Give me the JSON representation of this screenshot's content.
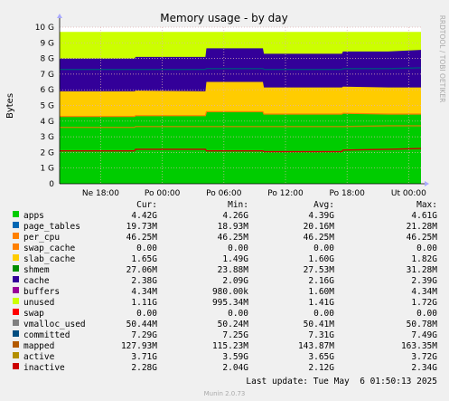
{
  "chart_data": {
    "type": "area",
    "title": "Memory usage - by day",
    "ylabel": "Bytes",
    "side_label": "RRDTOOL / TOBI OETIKER",
    "ylim": [
      0,
      10
    ],
    "y_unit": "G",
    "y_ticks": [
      "0",
      "1 G",
      "2 G",
      "3 G",
      "4 G",
      "5 G",
      "6 G",
      "7 G",
      "8 G",
      "9 G",
      "10 G"
    ],
    "x_ticks": [
      "Ne 18:00",
      "Po 00:00",
      "Po 06:00",
      "Po 12:00",
      "Po 18:00",
      "Ut 00:00"
    ],
    "grid": true,
    "stacked_layers_G": {
      "x_hours_from_Ne_18_00": [
        -4.0,
        3.3,
        3.4,
        10.2,
        10.3,
        15.8,
        15.9,
        23.5,
        23.6,
        28.0,
        31.2
      ],
      "apps_top": [
        4.3,
        4.3,
        4.35,
        4.35,
        4.6,
        4.6,
        4.45,
        4.45,
        4.5,
        4.45,
        4.45
      ],
      "slab_cache_top": [
        5.9,
        5.9,
        5.95,
        5.9,
        6.5,
        6.5,
        6.15,
        6.15,
        6.2,
        6.15,
        6.15
      ],
      "cache_top": [
        8.0,
        8.0,
        8.1,
        8.1,
        8.65,
        8.65,
        8.3,
        8.3,
        8.45,
        8.45,
        8.55
      ],
      "unused_top": [
        9.7,
        9.7,
        9.7,
        9.7,
        9.7,
        9.7,
        9.7,
        9.7,
        9.7,
        9.7,
        9.7
      ],
      "inactive_line": [
        2.1,
        2.1,
        2.2,
        2.2,
        2.1,
        2.1,
        2.05,
        2.05,
        2.15,
        2.2,
        2.25
      ],
      "active_line": [
        3.6,
        3.6,
        3.65,
        3.65,
        3.65,
        3.65,
        3.65,
        3.65,
        3.65,
        3.7,
        3.7
      ],
      "committed_line": [
        7.3,
        7.3,
        7.3,
        7.3,
        7.35,
        7.35,
        7.3,
        7.3,
        7.35,
        7.35,
        7.4
      ]
    },
    "legend_header": {
      "cur": "Cur:",
      "min": "Min:",
      "avg": "Avg:",
      "max": "Max:"
    },
    "series": [
      {
        "name": "apps",
        "color": "#00cc00",
        "cur": "4.42G",
        "min": "4.26G",
        "avg": "4.39G",
        "max": "4.61G"
      },
      {
        "name": "page_tables",
        "color": "#0066b3",
        "cur": "19.73M",
        "min": "18.93M",
        "avg": "20.16M",
        "max": "21.28M"
      },
      {
        "name": "per_cpu",
        "color": "#ff8000",
        "cur": "46.25M",
        "min": "46.25M",
        "avg": "46.25M",
        "max": "46.25M"
      },
      {
        "name": "swap_cache",
        "color": "#ff8000",
        "cur": "0.00",
        "min": "0.00",
        "avg": "0.00",
        "max": "0.00"
      },
      {
        "name": "slab_cache",
        "color": "#ffcc00",
        "cur": "1.65G",
        "min": "1.49G",
        "avg": "1.60G",
        "max": "1.82G"
      },
      {
        "name": "shmem",
        "color": "#008f00",
        "cur": "27.06M",
        "min": "23.88M",
        "avg": "27.53M",
        "max": "31.28M"
      },
      {
        "name": "cache",
        "color": "#330099",
        "cur": "2.38G",
        "min": "2.09G",
        "avg": "2.16G",
        "max": "2.39G"
      },
      {
        "name": "buffers",
        "color": "#990099",
        "cur": "4.34M",
        "min": "980.00k",
        "avg": "1.60M",
        "max": "4.34M"
      },
      {
        "name": "unused",
        "color": "#ccff00",
        "cur": "1.11G",
        "min": "995.34M",
        "avg": "1.41G",
        "max": "1.72G"
      },
      {
        "name": "swap",
        "color": "#ff0000",
        "cur": "0.00",
        "min": "0.00",
        "avg": "0.00",
        "max": "0.00"
      },
      {
        "name": "vmalloc_used",
        "color": "#808080",
        "cur": "50.44M",
        "min": "50.24M",
        "avg": "50.41M",
        "max": "50.78M"
      },
      {
        "name": "committed",
        "color": "#004d80",
        "cur": "7.29G",
        "min": "7.25G",
        "avg": "7.31G",
        "max": "7.49G"
      },
      {
        "name": "mapped",
        "color": "#b35a00",
        "cur": "127.93M",
        "min": "115.23M",
        "avg": "143.87M",
        "max": "163.35M"
      },
      {
        "name": "active",
        "color": "#b38f00",
        "cur": "3.71G",
        "min": "3.59G",
        "avg": "3.65G",
        "max": "3.72G"
      },
      {
        "name": "inactive",
        "color": "#cc0000",
        "cur": "2.28G",
        "min": "2.04G",
        "avg": "2.12G",
        "max": "2.34G"
      }
    ]
  },
  "footer": {
    "last_update": "Last update: Tue May  6 01:50:13 2025",
    "munin": "Munin 2.0.73"
  },
  "colors": {
    "background": "#f0f0f0",
    "plot_background": "#ffffff",
    "grid": "#e0b0b0",
    "axis_arrow": "#aaaaff"
  }
}
